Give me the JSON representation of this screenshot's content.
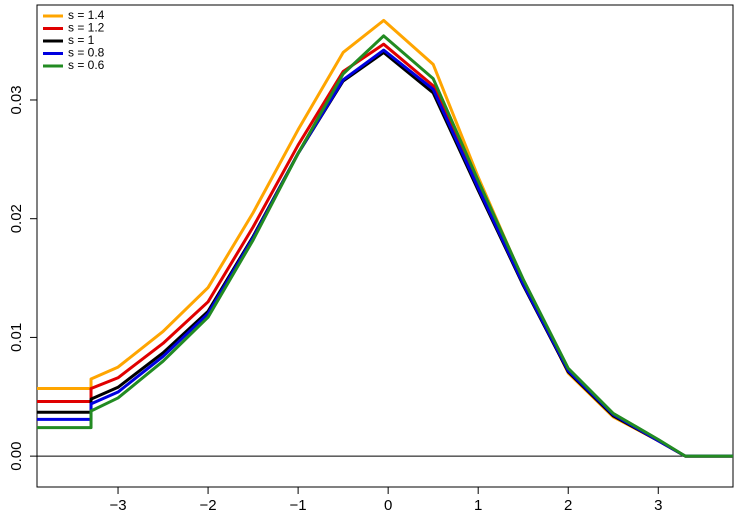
{
  "chart_data": {
    "type": "line",
    "x": [
      -3.9,
      -3.3,
      -3.3,
      -3,
      -2.5,
      -2,
      -1.5,
      -1,
      -0.5,
      -0.05,
      0.5,
      1,
      1.5,
      2,
      2.5,
      3,
      3.3,
      3.83
    ],
    "series": [
      {
        "name": "s = 1.4",
        "color": "#ffa500",
        "values": [
          0.0057,
          0.0057,
          0.0065,
          0.0075,
          0.0105,
          0.0142,
          0.0205,
          0.0275,
          0.034,
          0.0367,
          0.033,
          0.0235,
          0.0148,
          0.007,
          0.0033,
          0.0013,
          0,
          0
        ]
      },
      {
        "name": "s = 1.2",
        "color": "#e00000",
        "values": [
          0.0046,
          0.0046,
          0.0057,
          0.0066,
          0.0095,
          0.013,
          0.0193,
          0.0262,
          0.0324,
          0.0347,
          0.0312,
          0.0228,
          0.0145,
          0.0071,
          0.0034,
          0.0013,
          0,
          0
        ]
      },
      {
        "name": "s = 1",
        "color": "#000000",
        "values": [
          0.0037,
          0.0037,
          0.0048,
          0.0058,
          0.0087,
          0.0122,
          0.0185,
          0.0255,
          0.0316,
          0.034,
          0.0306,
          0.0224,
          0.0144,
          0.0071,
          0.0034,
          0.0013,
          0,
          0
        ]
      },
      {
        "name": "s = 0.8",
        "color": "#0000e0",
        "values": [
          0.0031,
          0.0031,
          0.0044,
          0.0054,
          0.0084,
          0.012,
          0.0184,
          0.0255,
          0.0317,
          0.0342,
          0.0309,
          0.0226,
          0.0145,
          0.0072,
          0.0035,
          0.0013,
          0,
          0
        ]
      },
      {
        "name": "s = 0.6",
        "color": "#228b22",
        "values": [
          0.0024,
          0.0024,
          0.0038,
          0.0049,
          0.008,
          0.0117,
          0.0182,
          0.0255,
          0.0322,
          0.0354,
          0.0318,
          0.0232,
          0.0149,
          0.0074,
          0.0036,
          0.0014,
          0,
          0
        ]
      }
    ],
    "xlim": [
      -3.9,
      3.83
    ],
    "ylim": [
      -0.0026,
      0.038
    ],
    "xticks": [
      {
        "value": -3,
        "label": "−3"
      },
      {
        "value": -2,
        "label": "−2"
      },
      {
        "value": -1,
        "label": "−1"
      },
      0,
      1,
      2,
      3
    ],
    "yticks": [
      {
        "value": 0,
        "label": "0.00"
      },
      {
        "value": 0.01,
        "label": "0.01"
      },
      {
        "value": 0.02,
        "label": "0.02"
      },
      {
        "value": 0.03,
        "label": "0.03"
      }
    ],
    "hline": 0,
    "legend": "top-left"
  }
}
